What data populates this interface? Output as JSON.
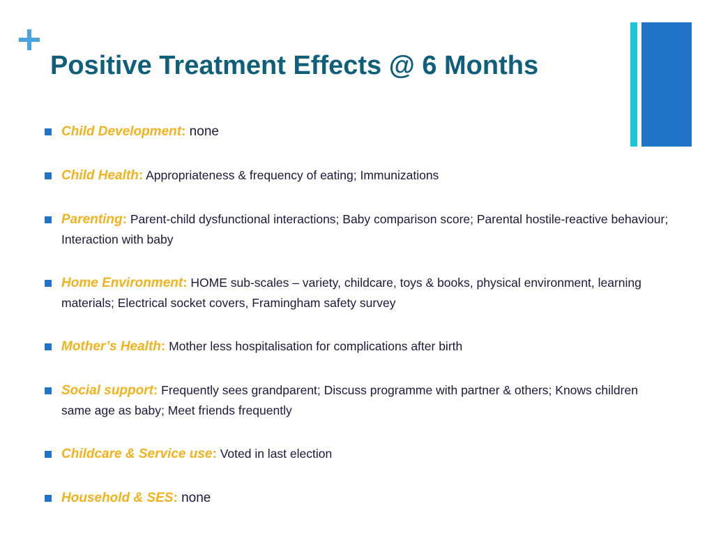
{
  "slide": {
    "title": "Positive Treatment Effects @ 6 Months",
    "colors": {
      "title": "#0f5f7a",
      "category": "#f2b21c",
      "bullet": "#1f74c9",
      "plus": "#4aa3df",
      "bar_thin": "#1cc7d8",
      "bar_wide": "#1f74c9"
    }
  },
  "bullets": [
    {
      "category": "Child Development",
      "sep": ":",
      "text": " none"
    },
    {
      "category": "Child Health",
      "sep": ":",
      "text": " Appropriateness & frequency of eating; Immunizations"
    },
    {
      "category": "Parenting",
      "sep": ":",
      "text": " Parent-child dysfunctional interactions; Baby comparison score; Parental hostile-reactive behaviour; Interaction with baby"
    },
    {
      "category": "Home Environment",
      "sep": ":",
      "text": " HOME sub-scales – variety, childcare, toys & books, physical environment, learning materials; Electrical socket covers, Framingham safety survey"
    },
    {
      "category": "Mother’s Health",
      "sep": ":",
      "text": " Mother less hospitalisation for complications after birth"
    },
    {
      "category": "Social support",
      "sep": ":",
      "text": " Frequently sees grandparent; Discuss programme with partner & others; Knows children same age as baby; Meet friends frequently"
    },
    {
      "category": "Childcare & Service use",
      "sep": ":",
      "text": " Voted in last election"
    },
    {
      "category": "Household & SES",
      "sep": ":",
      "text": " none"
    }
  ]
}
